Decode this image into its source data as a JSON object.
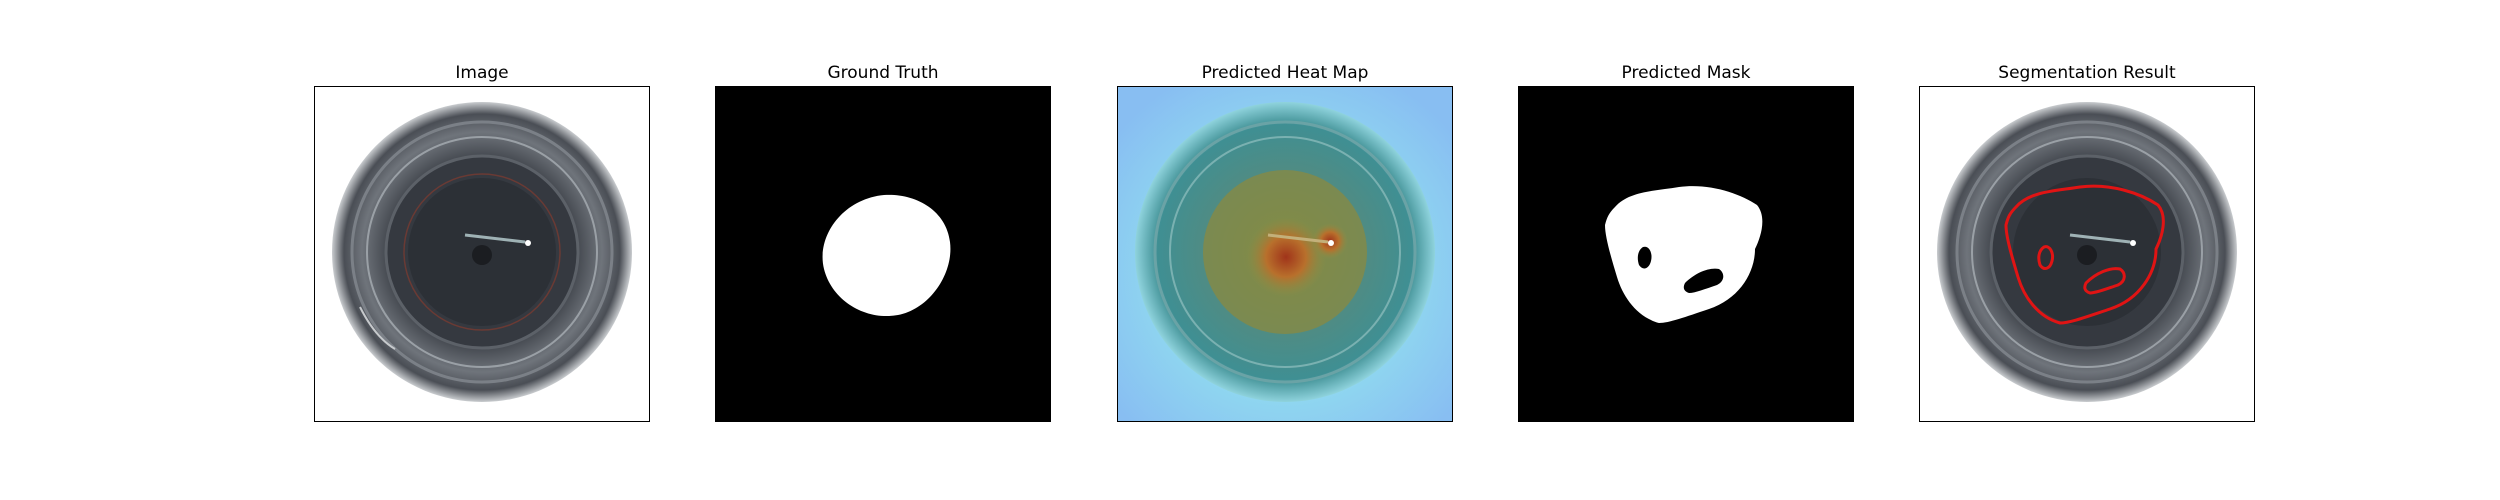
{
  "figure": {
    "panels": [
      {
        "title": "Image"
      },
      {
        "title": "Ground Truth"
      },
      {
        "title": "Predicted Heat Map"
      },
      {
        "title": "Predicted Mask"
      },
      {
        "title": "Segmentation Result"
      }
    ]
  },
  "colors": {
    "background": "#ffffff",
    "mask_foreground": "#ffffff",
    "mask_background": "#000000",
    "contour": "#e01414",
    "heat_cold": "#8fd0f2",
    "heat_hot": "#b02a10"
  }
}
